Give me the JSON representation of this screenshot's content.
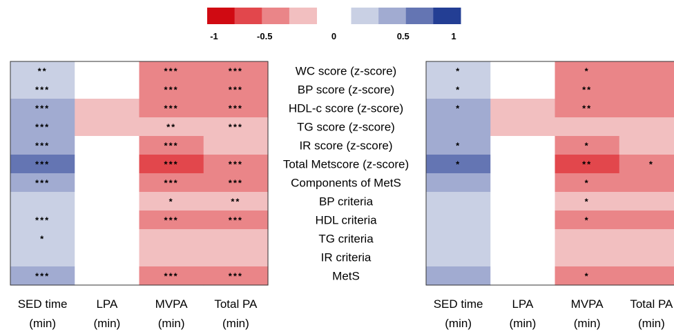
{
  "chart_data": {
    "type": "heatmap",
    "colorbar": {
      "ticks": [
        "-1",
        "-0.5",
        "0",
        "0.5",
        "1"
      ],
      "bins": [
        {
          "from": -1.0,
          "to": -0.75,
          "color": "#d00a12"
        },
        {
          "from": -0.75,
          "to": -0.5,
          "color": "#e2474c"
        },
        {
          "from": -0.5,
          "to": -0.25,
          "color": "#ea8588"
        },
        {
          "from": -0.25,
          "to": 0.0,
          "color": "#f2bfc0"
        },
        {
          "from": 0.0,
          "to": 0.25,
          "color": "#c9d0e4"
        },
        {
          "from": 0.25,
          "to": 0.5,
          "color": "#a1abd1"
        },
        {
          "from": 0.5,
          "to": 0.75,
          "color": "#6475b3"
        },
        {
          "from": 0.75,
          "to": 1.0,
          "color": "#233e94"
        }
      ],
      "zero_gap_color": "#ffffff"
    },
    "rows": [
      "WC score (z-score)",
      "BP score (z-score)",
      "HDL-c score (z-score)",
      "TG score (z-score)",
      "IR score (z-score)",
      "Total Metscore (z-score)",
      "Components of MetS",
      "BP criteria",
      "HDL criteria",
      "TG criteria",
      "IR criteria",
      "MetS"
    ],
    "columns": [
      [
        "SED time",
        "(min)"
      ],
      [
        "LPA",
        "(min)"
      ],
      [
        "MVPA",
        "(min)"
      ],
      [
        "Total PA",
        "(min)"
      ]
    ],
    "panels": [
      {
        "values": [
          [
            0.2,
            0,
            -0.4,
            -0.4
          ],
          [
            0.2,
            0,
            -0.4,
            -0.4
          ],
          [
            0.4,
            -0.2,
            -0.4,
            -0.4
          ],
          [
            0.4,
            -0.2,
            -0.2,
            -0.2
          ],
          [
            0.4,
            0,
            -0.4,
            -0.2
          ],
          [
            0.6,
            0,
            -0.6,
            -0.4
          ],
          [
            0.4,
            0,
            -0.4,
            -0.4
          ],
          [
            0.2,
            0,
            -0.2,
            -0.2
          ],
          [
            0.2,
            0,
            -0.4,
            -0.4
          ],
          [
            0.2,
            0,
            -0.2,
            -0.2
          ],
          [
            0.2,
            0,
            -0.2,
            -0.2
          ],
          [
            0.4,
            0,
            -0.4,
            -0.4
          ]
        ],
        "significance": [
          [
            "**",
            "",
            "***",
            "***"
          ],
          [
            "***",
            "",
            "***",
            "***"
          ],
          [
            "***",
            "",
            "***",
            "***"
          ],
          [
            "***",
            "",
            "**",
            "***"
          ],
          [
            "***",
            "",
            "***",
            ""
          ],
          [
            "***",
            "",
            "***",
            "***"
          ],
          [
            "***",
            "",
            "***",
            "***"
          ],
          [
            "",
            "",
            "*",
            "**"
          ],
          [
            "***",
            "",
            "***",
            "***"
          ],
          [
            "*",
            "",
            "",
            ""
          ],
          [
            "",
            "",
            "",
            ""
          ],
          [
            "***",
            "",
            "***",
            "***"
          ]
        ]
      },
      {
        "values": [
          [
            0.2,
            0,
            -0.4,
            -0.4
          ],
          [
            0.2,
            0,
            -0.4,
            -0.4
          ],
          [
            0.4,
            -0.2,
            -0.4,
            -0.4
          ],
          [
            0.4,
            -0.2,
            -0.2,
            -0.2
          ],
          [
            0.4,
            0,
            -0.4,
            -0.2
          ],
          [
            0.6,
            0,
            -0.6,
            -0.4
          ],
          [
            0.4,
            0,
            -0.4,
            -0.4
          ],
          [
            0.2,
            0,
            -0.2,
            -0.2
          ],
          [
            0.2,
            0,
            -0.4,
            -0.4
          ],
          [
            0.2,
            0,
            -0.2,
            -0.2
          ],
          [
            0.2,
            0,
            -0.2,
            -0.2
          ],
          [
            0.4,
            0,
            -0.4,
            -0.4
          ]
        ],
        "significance": [
          [
            "*",
            "",
            "*",
            ""
          ],
          [
            "*",
            "",
            "**",
            ""
          ],
          [
            "*",
            "",
            "**",
            ""
          ],
          [
            "",
            "",
            "",
            ""
          ],
          [
            "*",
            "",
            "*",
            ""
          ],
          [
            "*",
            "",
            "**",
            "*"
          ],
          [
            "",
            "",
            "*",
            ""
          ],
          [
            "",
            "",
            "*",
            ""
          ],
          [
            "",
            "",
            "*",
            ""
          ],
          [
            "",
            "",
            "",
            ""
          ],
          [
            "",
            "",
            "",
            ""
          ],
          [
            "",
            "",
            "*",
            ""
          ]
        ]
      }
    ]
  }
}
